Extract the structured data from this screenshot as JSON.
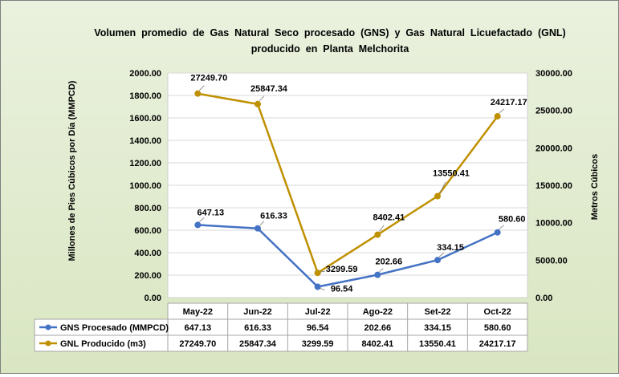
{
  "chart_data": {
    "type": "line",
    "title_line1": "Volumen  promedio  de  Gas  Natural  Seco  procesado  (GNS)  y  Gas  Natural  Licuefactado  (GNL)",
    "title_line2": "producido  en  Planta  Melchorita",
    "ylabel_left": "Millones de Pies Cúbicos por Día (MMPCD)",
    "ylabel_right": "Metros Cúbicos",
    "categories": [
      "May-22",
      "Jun-22",
      "Jul-22",
      "Ago-22",
      "Set-22",
      "Oct-22"
    ],
    "y_left": {
      "min": 0,
      "max": 2000,
      "step": 200,
      "ticks": [
        "0.00",
        "200.00",
        "400.00",
        "600.00",
        "800.00",
        "1000.00",
        "1200.00",
        "1400.00",
        "1600.00",
        "1800.00",
        "2000.00"
      ]
    },
    "y_right": {
      "min": 0,
      "max": 30000,
      "step": 5000,
      "ticks": [
        "0.00",
        "5000.00",
        "10000.00",
        "15000.00",
        "20000.00",
        "25000.00",
        "30000.00"
      ]
    },
    "grid": "horizontal",
    "legend": "data-table",
    "series": [
      {
        "name": "GNS Procesado (MMPCD)",
        "axis": "left",
        "color": "#4472c4",
        "values": [
          647.13,
          616.33,
          96.54,
          202.66,
          334.15,
          580.6
        ],
        "labels": [
          "647.13",
          "616.33",
          "96.54",
          "202.66",
          "334.15",
          "580.60"
        ]
      },
      {
        "name": "GNL Producido (m3)",
        "axis": "right",
        "color": "#bf9000",
        "values": [
          27249.7,
          25847.34,
          3299.59,
          8402.41,
          13550.41,
          24217.17
        ],
        "labels": [
          "27249.70",
          "25847.34",
          "3299.59",
          "8402.41",
          "13550.41",
          "24217.17"
        ]
      }
    ]
  }
}
